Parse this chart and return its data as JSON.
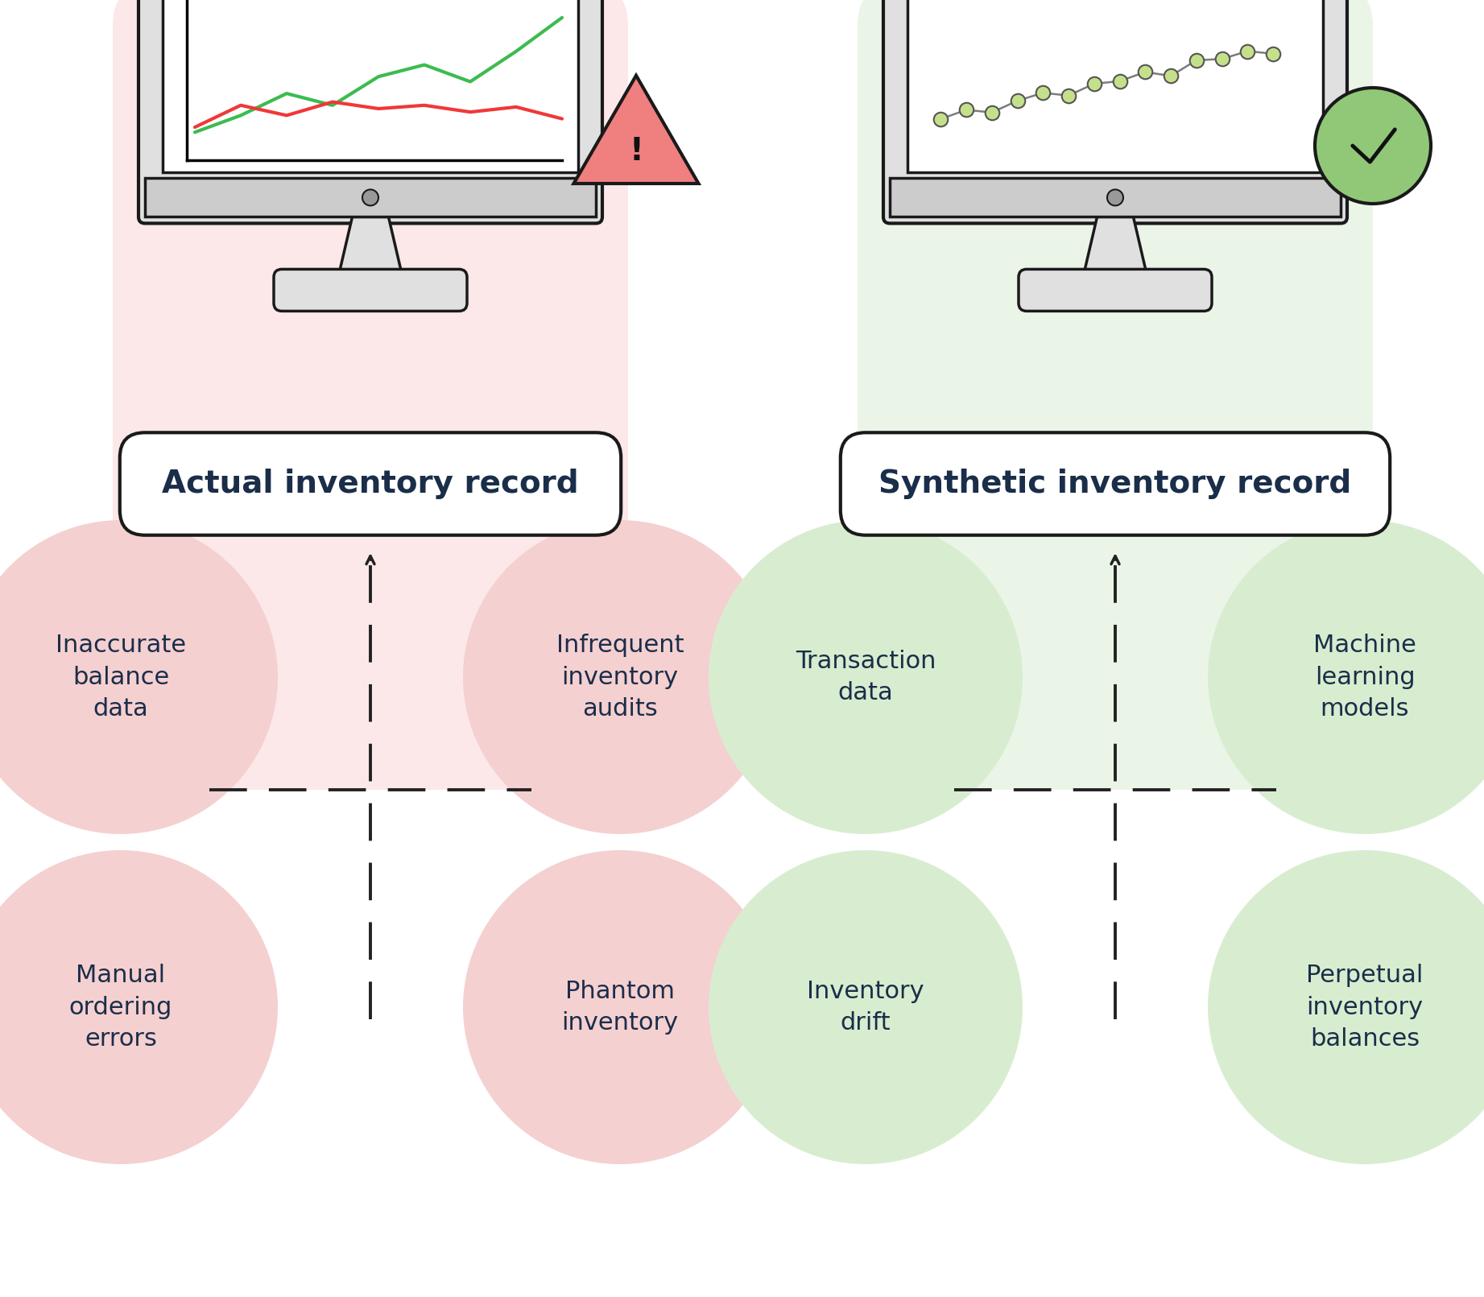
{
  "bg_color": "#ffffff",
  "left_bg_color": "#fce8e8",
  "right_bg_color": "#eaf5e8",
  "left_circle_color": "#f5d0d0",
  "right_circle_color": "#d8edcf",
  "left_label": "Actual inventory record",
  "right_label": "Synthetic inventory record",
  "left_items_tl": "Inaccurate\nbalance\ndata",
  "left_items_tr": "Infrequent\ninventory\naudits",
  "left_items_bl": "Manual\nordering\nerrors",
  "left_items_br": "Phantom\ninventory",
  "right_items_tl": "Transaction\ndata",
  "right_items_tr": "Machine\nlearning\nmodels",
  "right_items_bl": "Inventory\ndrift",
  "right_items_br": "Perpetual\ninventory\nbalances",
  "text_color": "#1a2e4a",
  "label_box_color": "#ffffff",
  "label_box_edge": "#1a1a1a",
  "monitor_frame_color": "#e0e0e0",
  "monitor_screen": "#ffffff",
  "monitor_border": "#1a1a1a",
  "monitor_bar_color": "#cccccc",
  "left_line1_color": "#4caf50",
  "left_line2_color": "#f44336",
  "right_dot_fill": "#c5e08a",
  "right_dot_edge": "#555555",
  "warning_fill": "#f08080",
  "warning_edge": "#1a1a1a",
  "check_fill": "#90c878",
  "check_edge": "#1a1a1a",
  "arrow_color": "#222222",
  "stand_shadow_left": "#e0b8b8",
  "stand_shadow_right": "#c8dec8"
}
